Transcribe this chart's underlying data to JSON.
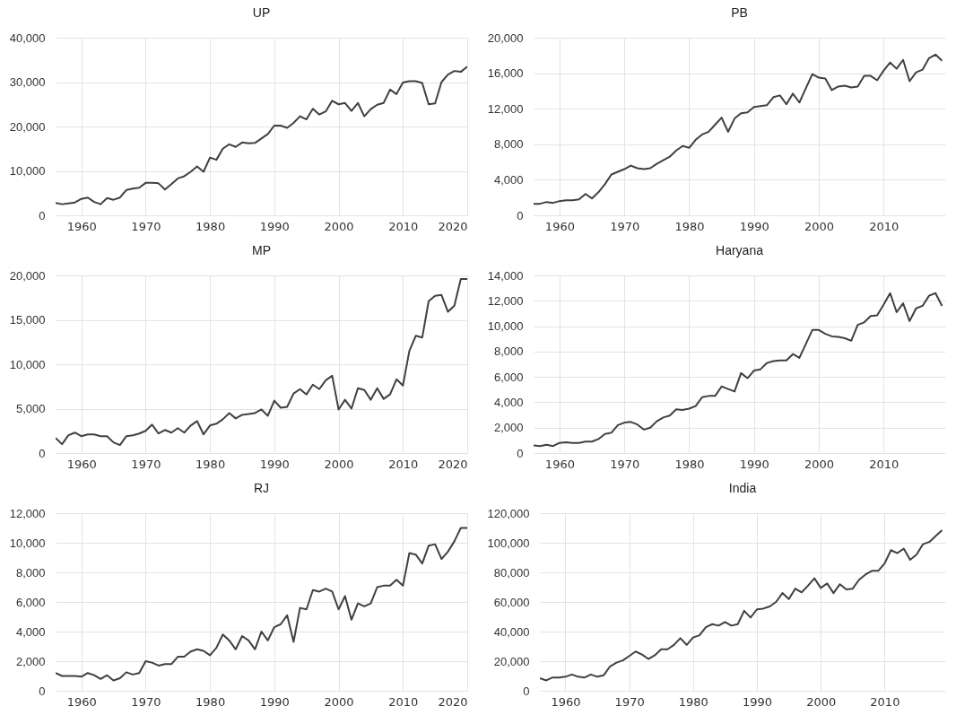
{
  "chart_data": [
    {
      "type": "line",
      "title": "UP",
      "color": "#404040",
      "grid": true,
      "xlim": [
        1956,
        2020
      ],
      "xticks": [
        1960,
        1970,
        1980,
        1990,
        2000,
        2010,
        2020
      ],
      "ylim": [
        0,
        40000
      ],
      "yticks": [
        {
          "value": 0,
          "label": "0"
        },
        {
          "value": 10000,
          "label": "10,000"
        },
        {
          "value": 20000,
          "label": "20,000"
        },
        {
          "value": 30000,
          "label": "30,000"
        },
        {
          "value": 40000,
          "label": "40,000"
        }
      ],
      "x": [
        1956,
        1957,
        1958,
        1959,
        1960,
        1961,
        1962,
        1963,
        1964,
        1965,
        1966,
        1967,
        1968,
        1969,
        1970,
        1971,
        1972,
        1973,
        1974,
        1975,
        1976,
        1977,
        1978,
        1979,
        1980,
        1981,
        1982,
        1983,
        1984,
        1985,
        1986,
        1987,
        1988,
        1989,
        1990,
        1991,
        1992,
        1993,
        1994,
        1995,
        1996,
        1997,
        1998,
        1999,
        2000,
        2001,
        2002,
        2003,
        2004,
        2005,
        2006,
        2007,
        2008,
        2009,
        2010,
        2011,
        2012,
        2013,
        2014,
        2015,
        2016,
        2017,
        2018,
        2019,
        2020
      ],
      "values": [
        2800,
        2500,
        2700,
        2900,
        3700,
        4000,
        3000,
        2500,
        3900,
        3500,
        4000,
        5700,
        6000,
        6200,
        7300,
        7300,
        7200,
        5800,
        7000,
        8300,
        8800,
        9800,
        11000,
        9800,
        13000,
        12500,
        15000,
        16000,
        15400,
        16400,
        16200,
        16300,
        17300,
        18300,
        20200,
        20200,
        19700,
        20800,
        22300,
        21600,
        24000,
        22700,
        23400,
        25800,
        25000,
        25300,
        23500,
        25300,
        22300,
        23900,
        24900,
        25300,
        28300,
        27300,
        29900,
        30200,
        30200,
        29800,
        25000,
        25200,
        30000,
        31700,
        32500,
        32300,
        33500
      ]
    },
    {
      "type": "line",
      "title": "PB",
      "color": "#404040",
      "grid": true,
      "xlim": [
        1956,
        2019.5
      ],
      "xticks": [
        1960,
        1970,
        1980,
        1990,
        2000,
        2010
      ],
      "ylim": [
        0,
        20000
      ],
      "yticks": [
        {
          "value": 0,
          "label": "0"
        },
        {
          "value": 4000,
          "label": "4,000"
        },
        {
          "value": 8000,
          "label": "8,000"
        },
        {
          "value": 12000,
          "label": "12,000"
        },
        {
          "value": 16000,
          "label": "16,000"
        },
        {
          "value": 20000,
          "label": "20,000"
        }
      ],
      "x": [
        1956,
        1957,
        1958,
        1959,
        1960,
        1961,
        1962,
        1963,
        1964,
        1965,
        1966,
        1967,
        1968,
        1969,
        1970,
        1971,
        1972,
        1973,
        1974,
        1975,
        1976,
        1977,
        1978,
        1979,
        1980,
        1981,
        1982,
        1983,
        1984,
        1985,
        1986,
        1987,
        1988,
        1989,
        1990,
        1991,
        1992,
        1993,
        1994,
        1995,
        1996,
        1997,
        1998,
        1999,
        2000,
        2001,
        2002,
        2003,
        2004,
        2005,
        2006,
        2007,
        2008,
        2009,
        2010,
        2011,
        2012,
        2013,
        2014,
        2015,
        2016,
        2017,
        2018,
        2019
      ],
      "values": [
        1300,
        1300,
        1500,
        1400,
        1600,
        1700,
        1700,
        1800,
        2400,
        1900,
        2600,
        3500,
        4600,
        4900,
        5200,
        5600,
        5300,
        5200,
        5300,
        5800,
        6200,
        6600,
        7300,
        7800,
        7600,
        8500,
        9100,
        9400,
        10200,
        11000,
        9400,
        10900,
        11500,
        11600,
        12200,
        12300,
        12400,
        13300,
        13500,
        12500,
        13700,
        12700,
        14300,
        15900,
        15500,
        15400,
        14100,
        14500,
        14600,
        14400,
        14500,
        15700,
        15700,
        15200,
        16300,
        17200,
        16500,
        17500,
        15100,
        16100,
        16400,
        17700,
        18100,
        17400
      ]
    },
    {
      "type": "line",
      "title": "MP",
      "color": "#404040",
      "grid": true,
      "xlim": [
        1956,
        2020
      ],
      "xticks": [
        1960,
        1970,
        1980,
        1990,
        2000,
        2010,
        2020
      ],
      "ylim": [
        0,
        20000
      ],
      "yticks": [
        {
          "value": 0,
          "label": "0"
        },
        {
          "value": 5000,
          "label": "5,000"
        },
        {
          "value": 10000,
          "label": "10,000"
        },
        {
          "value": 15000,
          "label": "15,000"
        },
        {
          "value": 20000,
          "label": "20,000"
        }
      ],
      "x": [
        1956,
        1957,
        1958,
        1959,
        1960,
        1961,
        1962,
        1963,
        1964,
        1965,
        1966,
        1967,
        1968,
        1969,
        1970,
        1971,
        1972,
        1973,
        1974,
        1975,
        1976,
        1977,
        1978,
        1979,
        1980,
        1981,
        1982,
        1983,
        1984,
        1985,
        1986,
        1987,
        1988,
        1989,
        1990,
        1991,
        1992,
        1993,
        1994,
        1995,
        1996,
        1997,
        1998,
        1999,
        2000,
        2001,
        2002,
        2003,
        2004,
        2005,
        2006,
        2007,
        2008,
        2009,
        2010,
        2011,
        2012,
        2013,
        2014,
        2015,
        2016,
        2017,
        2018,
        2019,
        2020
      ],
      "values": [
        1700,
        1000,
        2000,
        2300,
        1900,
        2100,
        2100,
        1900,
        1900,
        1200,
        900,
        1900,
        2000,
        2200,
        2500,
        3200,
        2200,
        2600,
        2300,
        2800,
        2300,
        3100,
        3600,
        2100,
        3100,
        3300,
        3800,
        4500,
        3900,
        4300,
        4400,
        4500,
        4900,
        4200,
        5900,
        5100,
        5200,
        6700,
        7200,
        6600,
        7700,
        7200,
        8200,
        8700,
        4900,
        6000,
        5000,
        7300,
        7100,
        6000,
        7300,
        6100,
        6600,
        8300,
        7600,
        11500,
        13200,
        13000,
        17100,
        17700,
        17800,
        15900,
        16600,
        19600,
        19600
      ]
    },
    {
      "type": "line",
      "title": "Haryana",
      "color": "#404040",
      "grid": true,
      "xlim": [
        1956,
        2019.5
      ],
      "xticks": [
        1960,
        1970,
        1980,
        1990,
        2000,
        2010
      ],
      "ylim": [
        0,
        14000
      ],
      "yticks": [
        {
          "value": 0,
          "label": "0"
        },
        {
          "value": 2000,
          "label": "2,000"
        },
        {
          "value": 4000,
          "label": "4,000"
        },
        {
          "value": 6000,
          "label": "6,000"
        },
        {
          "value": 8000,
          "label": "8,000"
        },
        {
          "value": 10000,
          "label": "10,000"
        },
        {
          "value": 12000,
          "label": "12,000"
        },
        {
          "value": 14000,
          "label": "14,000"
        }
      ],
      "x": [
        1956,
        1957,
        1958,
        1959,
        1960,
        1961,
        1962,
        1963,
        1964,
        1965,
        1966,
        1967,
        1968,
        1969,
        1970,
        1971,
        1972,
        1973,
        1974,
        1975,
        1976,
        1977,
        1978,
        1979,
        1980,
        1981,
        1982,
        1983,
        1984,
        1985,
        1986,
        1987,
        1988,
        1989,
        1990,
        1991,
        1992,
        1993,
        1994,
        1995,
        1996,
        1997,
        1998,
        1999,
        2000,
        2001,
        2002,
        2003,
        2004,
        2005,
        2006,
        2007,
        2008,
        2009,
        2010,
        2011,
        2012,
        2013,
        2014,
        2015,
        2016,
        2017,
        2018,
        2019
      ],
      "values": [
        600,
        550,
        650,
        550,
        800,
        850,
        800,
        800,
        900,
        900,
        1100,
        1500,
        1600,
        2200,
        2400,
        2450,
        2250,
        1850,
        2000,
        2500,
        2800,
        2950,
        3450,
        3400,
        3500,
        3700,
        4400,
        4500,
        4500,
        5250,
        5050,
        4850,
        6300,
        5900,
        6500,
        6600,
        7100,
        7250,
        7300,
        7300,
        7800,
        7500,
        8600,
        9700,
        9700,
        9400,
        9200,
        9150,
        9050,
        8850,
        10100,
        10300,
        10800,
        10850,
        11700,
        12600,
        11100,
        11800,
        10400,
        11400,
        11600,
        12400,
        12600,
        11600
      ]
    },
    {
      "type": "line",
      "title": "RJ",
      "color": "#404040",
      "grid": true,
      "xlim": [
        1956,
        2020
      ],
      "xticks": [
        1960,
        1970,
        1980,
        1990,
        2000,
        2010,
        2020
      ],
      "ylim": [
        0,
        12000
      ],
      "yticks": [
        {
          "value": 0,
          "label": "0"
        },
        {
          "value": 2000,
          "label": "2,000"
        },
        {
          "value": 4000,
          "label": "4,000"
        },
        {
          "value": 6000,
          "label": "6,000"
        },
        {
          "value": 8000,
          "label": "8,000"
        },
        {
          "value": 10000,
          "label": "10,000"
        },
        {
          "value": 12000,
          "label": "12,000"
        }
      ],
      "x": [
        1956,
        1957,
        1958,
        1959,
        1960,
        1961,
        1962,
        1963,
        1964,
        1965,
        1966,
        1967,
        1968,
        1969,
        1970,
        1971,
        1972,
        1973,
        1974,
        1975,
        1976,
        1977,
        1978,
        1979,
        1980,
        1981,
        1982,
        1983,
        1984,
        1985,
        1986,
        1987,
        1988,
        1989,
        1990,
        1991,
        1992,
        1993,
        1994,
        1995,
        1996,
        1997,
        1998,
        1999,
        2000,
        2001,
        2002,
        2003,
        2004,
        2005,
        2006,
        2007,
        2008,
        2009,
        2010,
        2011,
        2012,
        2013,
        2014,
        2015,
        2016,
        2017,
        2018,
        2019,
        2020
      ],
      "values": [
        1200,
        1000,
        1000,
        1000,
        950,
        1200,
        1050,
        800,
        1050,
        700,
        850,
        1250,
        1100,
        1200,
        2000,
        1900,
        1700,
        1800,
        1800,
        2300,
        2300,
        2650,
        2800,
        2700,
        2400,
        2900,
        3800,
        3400,
        2800,
        3700,
        3400,
        2800,
        4000,
        3400,
        4300,
        4500,
        5100,
        3300,
        5600,
        5500,
        6800,
        6700,
        6900,
        6700,
        5500,
        6400,
        4800,
        5900,
        5700,
        5900,
        7000,
        7100,
        7100,
        7500,
        7100,
        9300,
        9200,
        8600,
        9800,
        9900,
        8900,
        9400,
        10100,
        11000,
        11000
      ]
    },
    {
      "type": "line",
      "title": "India",
      "color": "#404040",
      "grid": true,
      "xlim": [
        1956,
        2019.5
      ],
      "xticks": [
        1960,
        1970,
        1980,
        1990,
        2000,
        2010
      ],
      "ylim": [
        0,
        120000
      ],
      "yticks": [
        {
          "value": 0,
          "label": "0"
        },
        {
          "value": 20000,
          "label": "20,000"
        },
        {
          "value": 40000,
          "label": "40,000"
        },
        {
          "value": 60000,
          "label": "60,000"
        },
        {
          "value": 80000,
          "label": "80,000"
        },
        {
          "value": 100000,
          "label": "100,000"
        },
        {
          "value": 120000,
          "label": "120,000"
        }
      ],
      "x": [
        1956,
        1957,
        1958,
        1959,
        1960,
        1961,
        1962,
        1963,
        1964,
        1965,
        1966,
        1967,
        1968,
        1969,
        1970,
        1971,
        1972,
        1973,
        1974,
        1975,
        1976,
        1977,
        1978,
        1979,
        1980,
        1981,
        1982,
        1983,
        1984,
        1985,
        1986,
        1987,
        1988,
        1989,
        1990,
        1991,
        1992,
        1993,
        1994,
        1995,
        1996,
        1997,
        1998,
        1999,
        2000,
        2001,
        2002,
        2003,
        2004,
        2005,
        2006,
        2007,
        2008,
        2009,
        2010,
        2011,
        2012,
        2013,
        2014,
        2015,
        2016,
        2017,
        2018,
        2019
      ],
      "values": [
        8500,
        7000,
        9000,
        9000,
        9500,
        11000,
        9500,
        9000,
        11000,
        9500,
        10500,
        16500,
        19000,
        20500,
        23500,
        26500,
        24500,
        21500,
        24000,
        28000,
        28000,
        31000,
        35500,
        31000,
        36000,
        37500,
        43000,
        45000,
        44000,
        46500,
        44000,
        45000,
        54000,
        49500,
        55000,
        55500,
        57000,
        60000,
        66000,
        62000,
        69000,
        66500,
        71000,
        76000,
        69500,
        72500,
        66000,
        72000,
        68500,
        69000,
        75000,
        78500,
        81000,
        81000,
        86000,
        95000,
        93000,
        96000,
        88500,
        92000,
        99000,
        100500,
        104500,
        108500
      ]
    }
  ]
}
